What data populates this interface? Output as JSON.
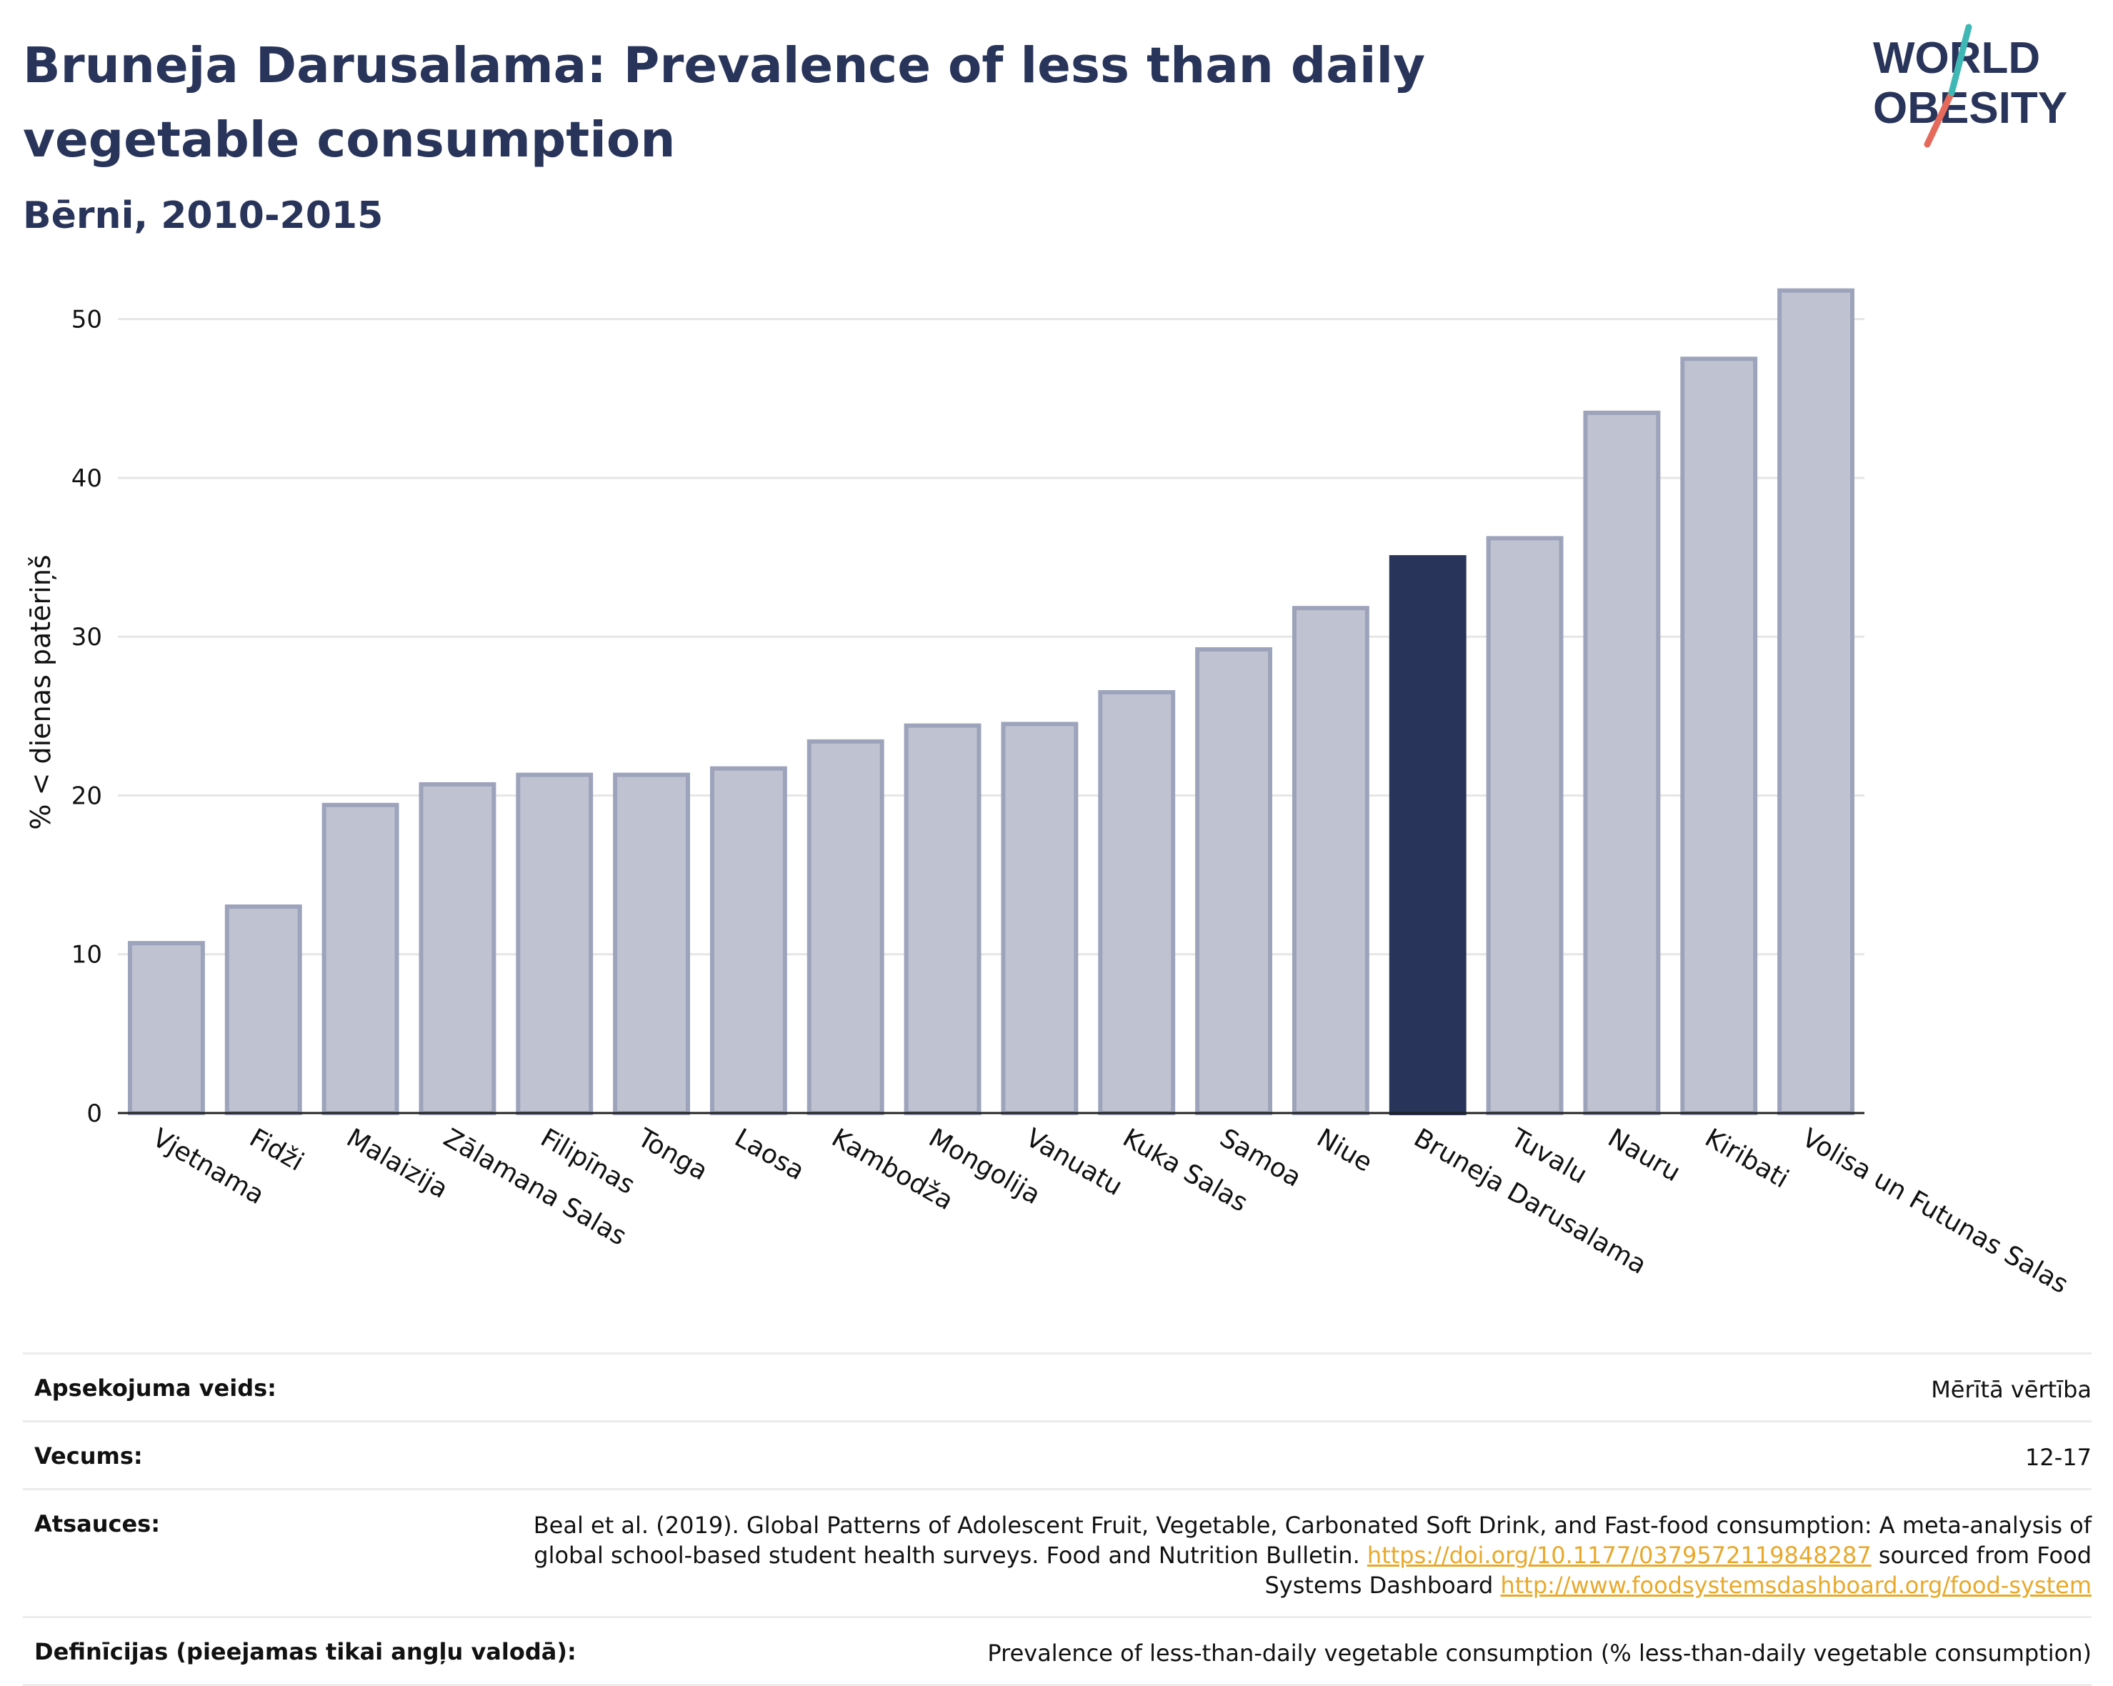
{
  "header": {
    "title": "Bruneja Darusalama: Prevalence of less than daily vegetable consumption",
    "subtitle": "Bērni, 2010-2015",
    "logo_text_line1": "WORLD",
    "logo_text_line2": "OBESITY"
  },
  "chart_data": {
    "type": "bar",
    "ylabel": "% < dienas patēriņš",
    "xlabel": "",
    "ylim": [
      0,
      53
    ],
    "yticks": [
      "0",
      "10",
      "20",
      "30",
      "40",
      "50"
    ],
    "grid": true,
    "highlight": "Bruneja Darusalama",
    "categories": [
      "Vjetnama",
      "Fidži",
      "Malaizija",
      "Zālamana Salas",
      "Filipīnas",
      "Tonga",
      "Laosa",
      "Kambodža",
      "Mongolija",
      "Vanuatu",
      "Kuka Salas",
      "Samoa",
      "Niue",
      "Bruneja Darusalama",
      "Tuvalu",
      "Nauru",
      "Kiribati",
      "Volisa un Futunas Salas"
    ],
    "values": [
      10.7,
      13.0,
      19.4,
      20.7,
      21.3,
      21.3,
      21.7,
      23.4,
      24.4,
      24.5,
      26.5,
      29.2,
      31.8,
      35.0,
      36.2,
      44.1,
      47.5,
      51.8
    ],
    "colors": {
      "bar": "#bfc3d1",
      "bar_edge": "#9da3bb",
      "highlight": "#29345a"
    }
  },
  "meta": {
    "survey_label": "Apsekojuma veids:",
    "survey_value": "Mērītā vērtība",
    "age_label": "Vecums:",
    "age_value": "12-17",
    "refs_label": "Atsauces:",
    "refs_text1": "Beal et al. (2019). Global Patterns of Adolescent Fruit, Vegetable, Carbonated Soft Drink, and Fast-food consumption: A meta-analysis of global school-based student health surveys. Food and Nutrition Bulletin.",
    "refs_link1": "https://doi.org/10.1177/0379572119848287",
    "refs_text2": "sourced from Food Systems Dashboard",
    "refs_link2": "http://www.foodsystemsdashboard.org/food-system",
    "defs_label": "Definīcijas (pieejamas tikai angļu valodā):",
    "defs_value": "Prevalence of less-than-daily vegetable consumption (% less-than-daily vegetable consumption)"
  }
}
